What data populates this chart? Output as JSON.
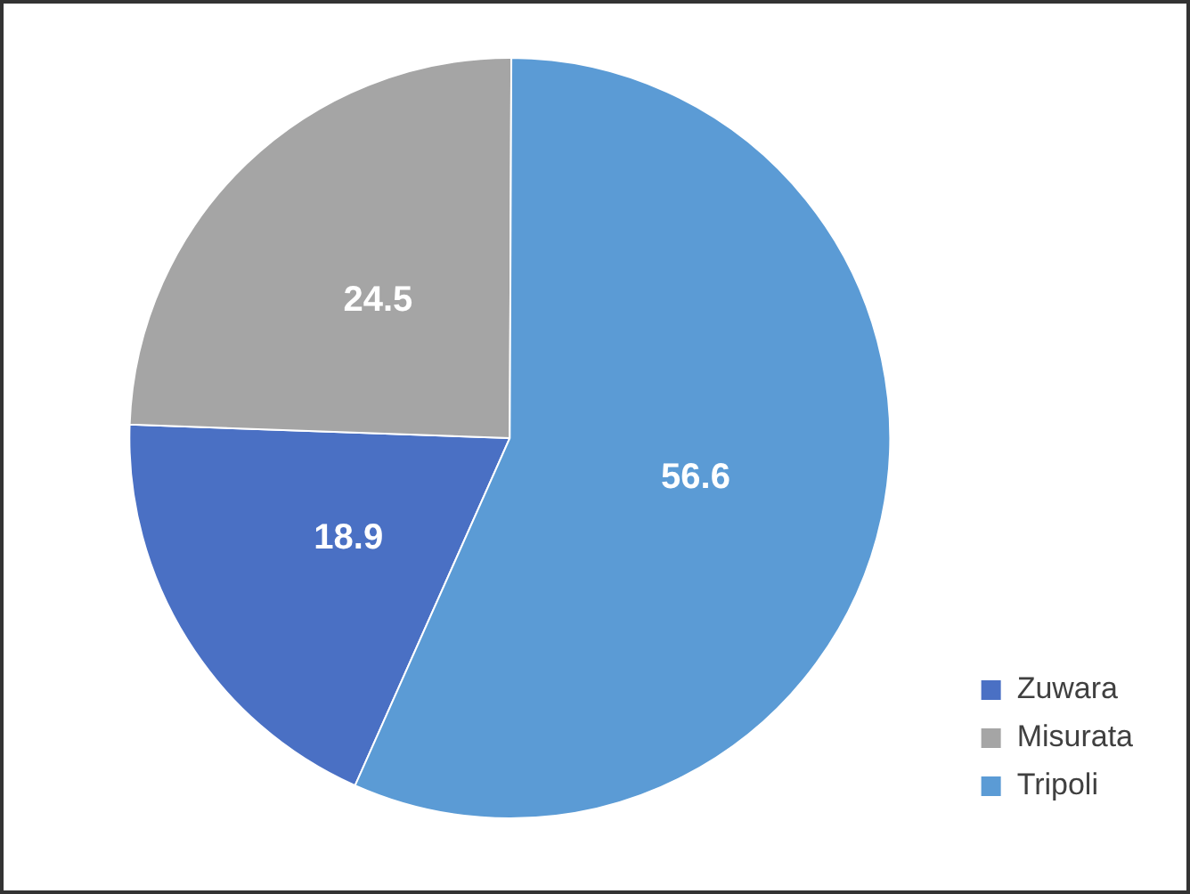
{
  "chart_data": {
    "type": "pie",
    "categories": [
      "Zuwara",
      "Misurata",
      "Tripoli"
    ],
    "values": [
      18.9,
      24.5,
      56.6
    ],
    "colors": [
      "#4a70c4",
      "#a5a5a5",
      "#5b9bd5"
    ],
    "data_labels": true,
    "legend": "bottom right"
  }
}
